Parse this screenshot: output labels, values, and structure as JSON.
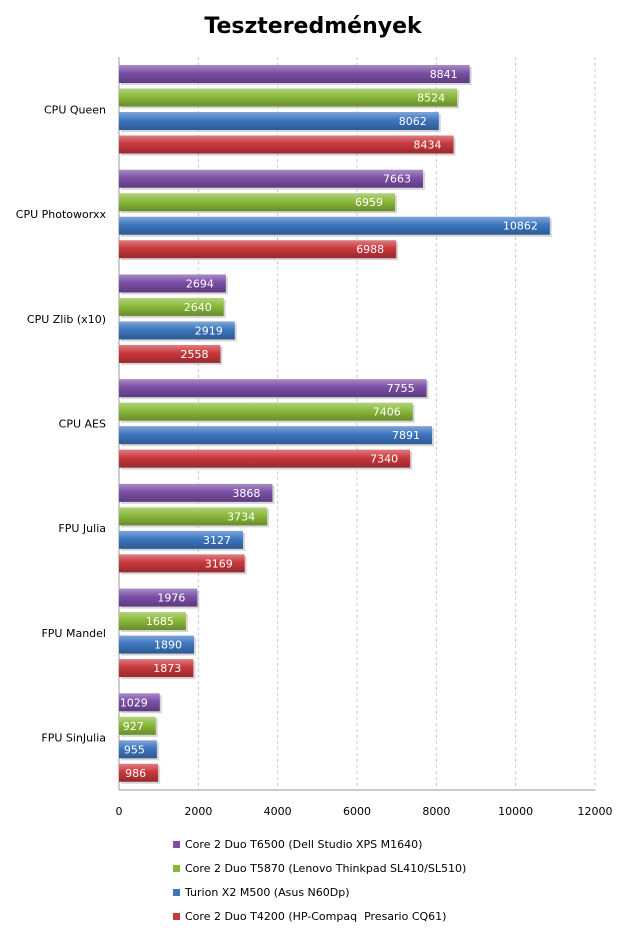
{
  "chart_data": {
    "type": "bar",
    "orientation": "horizontal",
    "title": "Teszteredmények",
    "xlabel": "",
    "ylabel": "",
    "xlim": [
      0,
      12000
    ],
    "xticks": [
      0,
      2000,
      4000,
      6000,
      8000,
      10000,
      12000
    ],
    "grid": true,
    "legend_position": "bottom",
    "categories": [
      "CPU Queen",
      "CPU Photoworxx",
      "CPU Zlib (x10)",
      "CPU AES",
      "FPU Julia",
      "FPU Mandel",
      "FPU SinJulia"
    ],
    "series": [
      {
        "name": "Core 2 Duo T6500 (Dell Studio XPS M1640)",
        "color": "#7b4fa6",
        "values": [
          8841,
          7663,
          2694,
          7755,
          3868,
          1976,
          1029
        ]
      },
      {
        "name": "Core 2 Duo T5870 (Lenovo Thinkpad SL410/SL510)",
        "color": "#8ab93a",
        "values": [
          8524,
          6959,
          2640,
          7406,
          3734,
          1685,
          927
        ]
      },
      {
        "name": "Turion X2 M500 (Asus N60Dp)",
        "color": "#3d76c0",
        "values": [
          8062,
          10862,
          2919,
          7891,
          3127,
          1890,
          955
        ]
      },
      {
        "name": "Core 2 Duo T4200 (HP-Compaq  Presario CQ61)",
        "color": "#c9383d",
        "values": [
          8434,
          6988,
          2558,
          7340,
          3169,
          1873,
          986
        ]
      }
    ]
  }
}
